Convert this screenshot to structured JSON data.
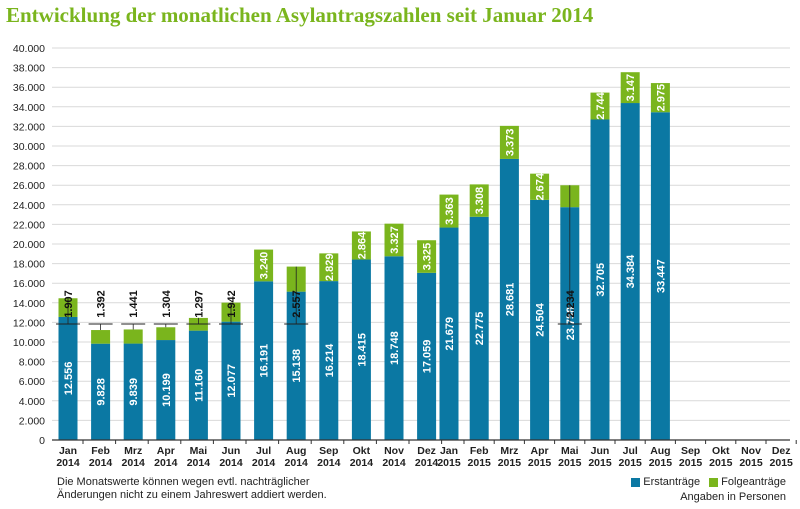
{
  "title": "Entwicklung der monatlichen Asylantragszahlen seit Januar 2014",
  "note_line1": "Die Monatswerte können wegen evtl. nachträglicher",
  "note_line2": "Änderungen nicht zu einem Jahreswert addiert werden.",
  "legend_unit": "Angaben in Personen",
  "colors": {
    "erst": "#0b78a3",
    "folge": "#7ab51d",
    "axis": "#333333",
    "grid": "#d9d9d9"
  },
  "chart_data": {
    "type": "bar",
    "stacked": true,
    "ylim": [
      0,
      40000
    ],
    "ytick_labels": [
      "0",
      "2.000",
      "4.000",
      "6.000",
      "8.000",
      "10.000",
      "12.000",
      "14.000",
      "16.000",
      "18.000",
      "20.000",
      "22.000",
      "24.000",
      "26.000",
      "28.000",
      "30.000",
      "32.000",
      "34.000",
      "36.000",
      "38.000",
      "40.000"
    ],
    "grid": true,
    "legend_position": "bottom-right",
    "categories": [
      {
        "month": "Jan",
        "year": "2014"
      },
      {
        "month": "Feb",
        "year": "2014"
      },
      {
        "month": "Mrz",
        "year": "2014"
      },
      {
        "month": "Apr",
        "year": "2014"
      },
      {
        "month": "Mai",
        "year": "2014"
      },
      {
        "month": "Jun",
        "year": "2014"
      },
      {
        "month": "Jul",
        "year": "2014"
      },
      {
        "month": "Aug",
        "year": "2014"
      },
      {
        "month": "Sep",
        "year": "2014"
      },
      {
        "month": "Okt",
        "year": "2014"
      },
      {
        "month": "Nov",
        "year": "2014"
      },
      {
        "month": "Dez",
        "year": "2014"
      },
      {
        "month": "Jan",
        "year": "2015"
      },
      {
        "month": "Feb",
        "year": "2015"
      },
      {
        "month": "Mrz",
        "year": "2015"
      },
      {
        "month": "Apr",
        "year": "2015"
      },
      {
        "month": "Mai",
        "year": "2015"
      },
      {
        "month": "Jun",
        "year": "2015"
      },
      {
        "month": "Jul",
        "year": "2015"
      },
      {
        "month": "Aug",
        "year": "2015"
      },
      {
        "month": "Sep",
        "year": "2015"
      },
      {
        "month": "Okt",
        "year": "2015"
      },
      {
        "month": "Nov",
        "year": "2015"
      },
      {
        "month": "Dez",
        "year": "2015"
      }
    ],
    "series": [
      {
        "name": "Erstanträge",
        "values": [
          12556,
          9828,
          9839,
          10199,
          11160,
          12077,
          16191,
          15138,
          16214,
          18415,
          18748,
          17059,
          21679,
          22775,
          28681,
          24504,
          23758,
          32705,
          34384,
          33447,
          null,
          null,
          null,
          null
        ],
        "labels": [
          "12.556",
          "9.828",
          "9.839",
          "10.199",
          "11.160",
          "12.077",
          "16.191",
          "15.138",
          "16.214",
          "18.415",
          "18.748",
          "17.059",
          "21.679",
          "22.775",
          "28.681",
          "24.504",
          "23.758",
          "32.705",
          "34.384",
          "33.447",
          "",
          "",
          "",
          ""
        ]
      },
      {
        "name": "Folgeanträge",
        "values": [
          1907,
          1392,
          1441,
          1304,
          1297,
          1942,
          3240,
          2557,
          2829,
          2864,
          3327,
          3325,
          3363,
          3308,
          3373,
          2674,
          2234,
          2744,
          3147,
          2975,
          null,
          null,
          null,
          null
        ],
        "labels": [
          "1.907",
          "1.392",
          "1.441",
          "1.304",
          "1.297",
          "1.942",
          "3.240",
          "2.557",
          "2.829",
          "2.864",
          "3.327",
          "3.325",
          "3.363",
          "3.308",
          "3.373",
          "2.674",
          "2.234",
          "2.744",
          "3.147",
          "2.975",
          "",
          "",
          "",
          ""
        ]
      }
    ]
  }
}
